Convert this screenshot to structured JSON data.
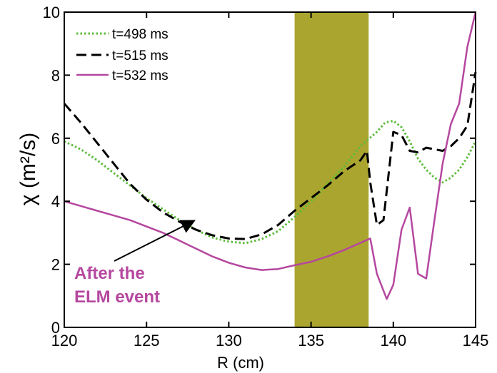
{
  "chart_data": {
    "type": "line",
    "xlabel": "R (cm)",
    "ylabel": "χ (m²/s)",
    "xlim": [
      120,
      145
    ],
    "ylim": [
      0,
      10
    ],
    "xticks": [
      120,
      125,
      130,
      135,
      140,
      145
    ],
    "yticks": [
      0,
      2,
      4,
      6,
      8,
      10
    ],
    "x_tick_labels": [
      "120",
      "125",
      "130",
      "135",
      "140",
      "145"
    ],
    "y_tick_labels": [
      "0",
      "2",
      "4",
      "6",
      "8",
      "10"
    ],
    "shaded_band": {
      "x_start": 134.0,
      "x_end": 138.5,
      "color": "#aaa52f"
    },
    "legend": {
      "position": "top-left"
    },
    "series": [
      {
        "name": "t=498 ms",
        "color": "#5dbb3a",
        "style": "dotted",
        "points": [
          [
            120,
            5.9
          ],
          [
            121,
            5.65
          ],
          [
            122,
            5.3
          ],
          [
            123,
            4.9
          ],
          [
            124,
            4.5
          ],
          [
            125,
            4.1
          ],
          [
            126,
            3.75
          ],
          [
            127,
            3.4
          ],
          [
            128,
            3.1
          ],
          [
            129,
            2.85
          ],
          [
            130,
            2.72
          ],
          [
            131,
            2.67
          ],
          [
            132,
            2.8
          ],
          [
            133,
            3.05
          ],
          [
            134,
            3.5
          ],
          [
            135,
            4.0
          ],
          [
            136,
            4.55
          ],
          [
            137,
            5.1
          ],
          [
            138,
            5.75
          ],
          [
            139,
            6.2
          ],
          [
            139.5,
            6.5
          ],
          [
            140,
            6.55
          ],
          [
            140.5,
            6.35
          ],
          [
            141,
            5.9
          ],
          [
            141.5,
            5.35
          ],
          [
            142,
            5.0
          ],
          [
            142.5,
            4.75
          ],
          [
            143,
            4.6
          ],
          [
            143.5,
            4.75
          ],
          [
            144,
            5.0
          ],
          [
            144.5,
            5.4
          ],
          [
            145,
            5.9
          ]
        ]
      },
      {
        "name": "t=515 ms",
        "color": "#000000",
        "style": "dashed",
        "points": [
          [
            120,
            7.1
          ],
          [
            121,
            6.5
          ],
          [
            122,
            5.85
          ],
          [
            123,
            5.2
          ],
          [
            124,
            4.55
          ],
          [
            125,
            4.05
          ],
          [
            126,
            3.65
          ],
          [
            127,
            3.35
          ],
          [
            128,
            3.1
          ],
          [
            129,
            2.92
          ],
          [
            130,
            2.82
          ],
          [
            131,
            2.8
          ],
          [
            132,
            2.95
          ],
          [
            133,
            3.25
          ],
          [
            134,
            3.7
          ],
          [
            135,
            4.1
          ],
          [
            136,
            4.5
          ],
          [
            137,
            4.95
          ],
          [
            138,
            5.3
          ],
          [
            138.4,
            5.6
          ],
          [
            138.6,
            4.6
          ],
          [
            139,
            3.25
          ],
          [
            139.4,
            3.4
          ],
          [
            140,
            6.2
          ],
          [
            140.5,
            6.1
          ],
          [
            141,
            5.6
          ],
          [
            141.5,
            5.55
          ],
          [
            142,
            5.7
          ],
          [
            142.5,
            5.65
          ],
          [
            143,
            5.6
          ],
          [
            143.5,
            5.75
          ],
          [
            144,
            6.0
          ],
          [
            144.5,
            6.4
          ],
          [
            145,
            8.1
          ]
        ]
      },
      {
        "name": "t=532 ms",
        "color": "#b5479f",
        "style": "solid",
        "points": [
          [
            120,
            4.0
          ],
          [
            121,
            3.85
          ],
          [
            122,
            3.7
          ],
          [
            123,
            3.55
          ],
          [
            124,
            3.4
          ],
          [
            125,
            3.2
          ],
          [
            126,
            3.0
          ],
          [
            127,
            2.75
          ],
          [
            128,
            2.5
          ],
          [
            129,
            2.25
          ],
          [
            130,
            2.05
          ],
          [
            131,
            1.9
          ],
          [
            132,
            1.82
          ],
          [
            133,
            1.85
          ],
          [
            134,
            1.97
          ],
          [
            135,
            2.08
          ],
          [
            136,
            2.25
          ],
          [
            137,
            2.45
          ],
          [
            138,
            2.68
          ],
          [
            138.6,
            2.82
          ],
          [
            139,
            1.7
          ],
          [
            139.6,
            0.9
          ],
          [
            140,
            1.35
          ],
          [
            140.5,
            3.1
          ],
          [
            141,
            3.8
          ],
          [
            141.5,
            1.7
          ],
          [
            142,
            1.55
          ],
          [
            142.5,
            3.4
          ],
          [
            143,
            5.2
          ],
          [
            143.5,
            6.45
          ],
          [
            144,
            7.1
          ],
          [
            144.5,
            8.9
          ],
          [
            145,
            10.0
          ]
        ]
      }
    ],
    "annotation": {
      "lines": [
        "After the",
        "ELM event"
      ],
      "arrow_to": [
        128.0,
        3.5
      ]
    }
  }
}
